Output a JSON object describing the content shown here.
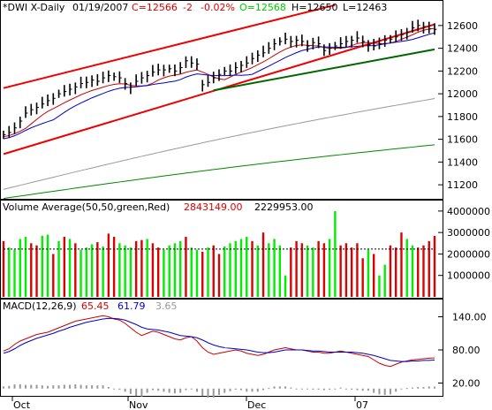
{
  "price_header": {
    "symbol": "*DWI X-Daily",
    "date": "01/19/2007",
    "close": "C=12566",
    "change": "-2",
    "change_pct": "-0.02%",
    "open": "O=12568",
    "high": "H=12650",
    "low": "L=12463"
  },
  "volume_header": {
    "title": "Volume Average(50,50,green,Red)",
    "value1": "2843149.00",
    "value2": "2229953.00"
  },
  "macd_header": {
    "title": "MACD(12,26,9)",
    "macd": "65.45",
    "signal": "61.79",
    "hist": "3.65"
  },
  "colors": {
    "up": "#00ee00",
    "down": "#dd0000",
    "trendline": "#ee0000",
    "support": "#006600",
    "ma_short": "#cc0000",
    "ma_mid": "#0000cc",
    "ma_long": "#999999",
    "ma_200": "#008800",
    "macd_line": "#0000cc",
    "signal_line": "#cc0000"
  },
  "chart_data": [
    {
      "type": "ohlc",
      "name": "price",
      "ylim": [
        11100,
        12700
      ],
      "y_ticks": [
        11200,
        11400,
        11600,
        11800,
        12000,
        12200,
        12400,
        12600
      ],
      "y_tick_labels": [
        "11200",
        "11400",
        "11600",
        "11800",
        "12000",
        "12200",
        "12400",
        "12600"
      ],
      "x_labels": [
        "Oct",
        "Nov",
        "Dec",
        "07"
      ],
      "closes": [
        11640,
        11660,
        11700,
        11760,
        11830,
        11860,
        11880,
        11910,
        11940,
        11960,
        12000,
        12020,
        12040,
        12060,
        12090,
        12100,
        12120,
        12110,
        12140,
        12160,
        12150,
        12140,
        12090,
        12060,
        12110,
        12140,
        12160,
        12190,
        12210,
        12210,
        12220,
        12200,
        12230,
        12290,
        12270,
        12260,
        12080,
        12100,
        12140,
        12170,
        12200,
        12200,
        12230,
        12250,
        12270,
        12310,
        12340,
        12360,
        12400,
        12440,
        12460,
        12480,
        12460,
        12470,
        12460,
        12420,
        12450,
        12440,
        12380,
        12400,
        12420,
        12440,
        12460,
        12470,
        12490,
        12460,
        12430,
        12420,
        12440,
        12470,
        12480,
        12500,
        12520,
        12540,
        12580,
        12600,
        12590,
        12570,
        12566
      ],
      "high_low_half_range": 60,
      "moving_averages": [
        {
          "name": "ma_short",
          "start": 11600,
          "end": 12540
        },
        {
          "name": "ma_mid",
          "start": 11560,
          "end": 12500
        },
        {
          "name": "ma_long",
          "start": 11160,
          "end": 12040
        },
        {
          "name": "ma_200",
          "start": 11080,
          "end": 11600
        }
      ],
      "trendlines": [
        {
          "name": "upper-channel",
          "from": [
            0,
            12050
          ],
          "to": [
            60,
            12780
          ]
        },
        {
          "name": "lower-channel",
          "from": [
            0,
            11470
          ],
          "to": [
            78,
            12610
          ]
        },
        {
          "name": "support",
          "from": [
            38,
            12030
          ],
          "to": [
            78,
            12390
          ]
        }
      ]
    },
    {
      "type": "bar",
      "name": "volume",
      "ylim": [
        0,
        4200000
      ],
      "y_ticks": [
        1000000,
        2000000,
        3000000,
        4000000
      ],
      "y_tick_labels": [
        "1000000",
        "2000000",
        "3000000",
        "4000000"
      ],
      "average_level": 2229953,
      "values": [
        2600000,
        2300000,
        2200000,
        2700000,
        2800000,
        2500000,
        2400000,
        2850000,
        2900000,
        2000000,
        2600000,
        2800000,
        2700000,
        2500000,
        2200000,
        2300000,
        2450000,
        2550000,
        2350000,
        2950000,
        2800000,
        2500000,
        2400000,
        2300000,
        2600000,
        2650000,
        2700000,
        2500000,
        2300000,
        2200000,
        2400000,
        2500000,
        2600000,
        2800000,
        2300000,
        2200000,
        2100000,
        2300000,
        2400000,
        2000000,
        2350000,
        2500000,
        2600000,
        2700000,
        2800000,
        2600000,
        2400000,
        3000000,
        2500000,
        2700000,
        2400000,
        1000000,
        2300000,
        2600000,
        2500000,
        2400000,
        2300000,
        2600000,
        2500000,
        2700000,
        4000000,
        2400000,
        2500000,
        2300000,
        2500000,
        1800000,
        2200000,
        2000000,
        1000000,
        1500000,
        2400000,
        2300000,
        3000000,
        2700000,
        2400000,
        2300000,
        2400000,
        2600000,
        2843149
      ],
      "up_flags": [
        0,
        1,
        1,
        1,
        1,
        0,
        0,
        1,
        1,
        0,
        1,
        0,
        1,
        0,
        1,
        1,
        1,
        0,
        1,
        0,
        0,
        1,
        1,
        1,
        0,
        0,
        1,
        0,
        0,
        1,
        1,
        1,
        1,
        0,
        1,
        1,
        0,
        1,
        0,
        0,
        1,
        1,
        1,
        1,
        1,
        0,
        1,
        0,
        1,
        1,
        1,
        1,
        0,
        0,
        0,
        1,
        1,
        0,
        0,
        1,
        1,
        0,
        0,
        0,
        0,
        0,
        1,
        0,
        1,
        1,
        0,
        0,
        0,
        1,
        1,
        0,
        0,
        0,
        0
      ]
    },
    {
      "type": "line",
      "name": "macd",
      "ylim": [
        0,
        160
      ],
      "y_ticks": [
        20,
        80,
        140
      ],
      "y_tick_labels": [
        "20.00",
        "80.00",
        "140.00"
      ],
      "series": [
        {
          "name": "macd",
          "values": [
            78,
            82,
            90,
            96,
            100,
            104,
            108,
            110,
            112,
            116,
            120,
            124,
            128,
            132,
            134,
            136,
            138,
            140,
            142,
            140,
            136,
            134,
            128,
            120,
            112,
            106,
            110,
            114,
            112,
            108,
            104,
            100,
            98,
            102,
            104,
            96,
            84,
            76,
            72,
            74,
            76,
            78,
            80,
            78,
            74,
            72,
            70,
            72,
            76,
            80,
            82,
            84,
            82,
            80,
            80,
            78,
            76,
            76,
            74,
            74,
            76,
            78,
            76,
            74,
            72,
            70,
            68,
            62,
            56,
            52,
            50,
            54,
            58,
            60,
            62,
            63,
            64,
            65,
            65.45
          ]
        },
        {
          "name": "signal",
          "values": [
            74,
            77,
            82,
            88,
            93,
            97,
            101,
            104,
            107,
            110,
            114,
            117,
            121,
            124,
            127,
            130,
            132,
            134,
            136,
            137,
            137,
            136,
            134,
            130,
            126,
            121,
            118,
            117,
            116,
            114,
            112,
            109,
            106,
            105,
            104,
            102,
            98,
            93,
            89,
            86,
            84,
            83,
            82,
            81,
            80,
            78,
            76,
            75,
            75,
            76,
            78,
            80,
            80,
            80,
            80,
            79,
            78,
            78,
            77,
            76,
            76,
            76,
            76,
            76,
            75,
            74,
            72,
            70,
            67,
            64,
            61,
            60,
            59,
            59,
            60,
            60,
            61,
            61,
            61.79
          ]
        }
      ],
      "histogram": [
        4,
        5,
        8,
        8,
        7,
        7,
        7,
        6,
        5,
        6,
        6,
        7,
        7,
        8,
        7,
        6,
        6,
        6,
        6,
        3,
        -1,
        -2,
        -6,
        -10,
        -14,
        -15,
        -8,
        -3,
        -4,
        -6,
        -8,
        -9,
        -8,
        -3,
        0,
        -6,
        -14,
        -17,
        -17,
        -12,
        -8,
        -5,
        -2,
        -3,
        -6,
        -6,
        -6,
        -3,
        1,
        4,
        4,
        4,
        2,
        0,
        0,
        -1,
        -2,
        -2,
        -3,
        -2,
        0,
        2,
        0,
        -2,
        -3,
        -4,
        -4,
        -8,
        -11,
        -12,
        -11,
        -6,
        -1,
        1,
        2,
        3,
        3,
        4,
        3.65
      ]
    }
  ]
}
